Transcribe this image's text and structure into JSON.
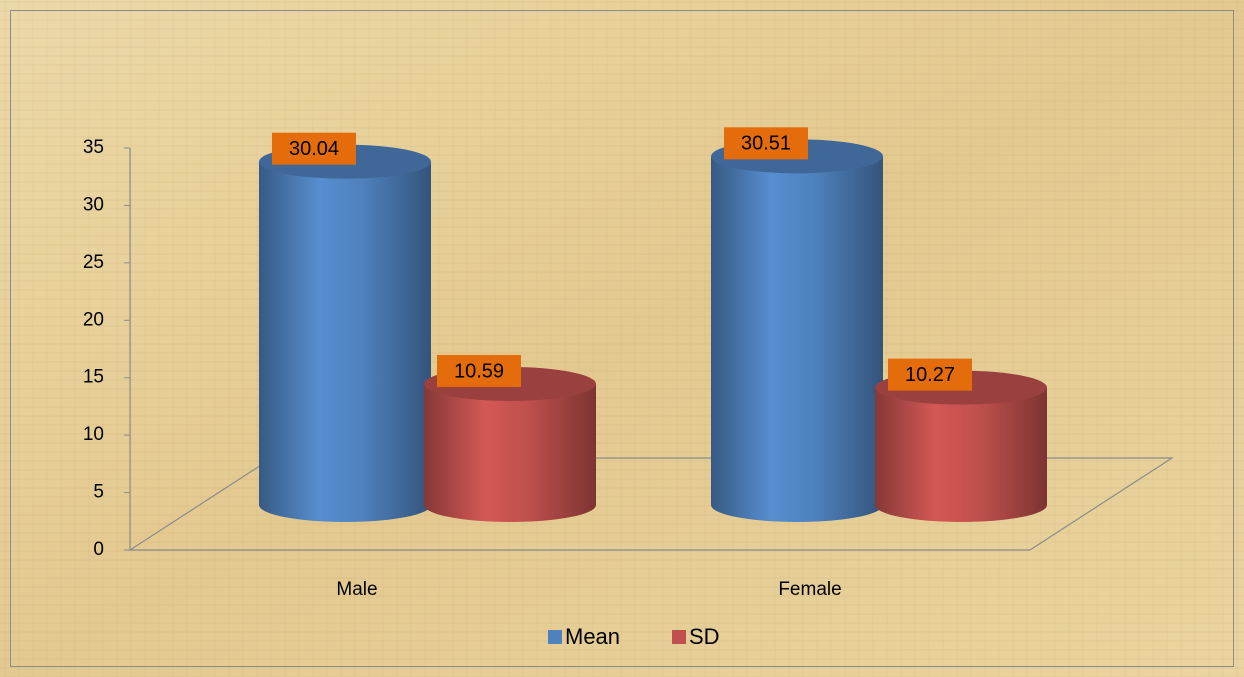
{
  "chart_data": {
    "type": "bar3d",
    "categories": [
      "Male",
      "Female"
    ],
    "series": [
      {
        "name": "Mean",
        "color": "#4f81bd",
        "values": [
          30.04,
          30.51
        ]
      },
      {
        "name": "SD",
        "color": "#c0504d",
        "values": [
          10.59,
          10.27
        ]
      }
    ],
    "ylim": [
      0,
      35
    ],
    "yticks": [
      0,
      5,
      10,
      15,
      20,
      25,
      30,
      35
    ],
    "legend": "bottom",
    "label_color": "#e46c0a"
  }
}
